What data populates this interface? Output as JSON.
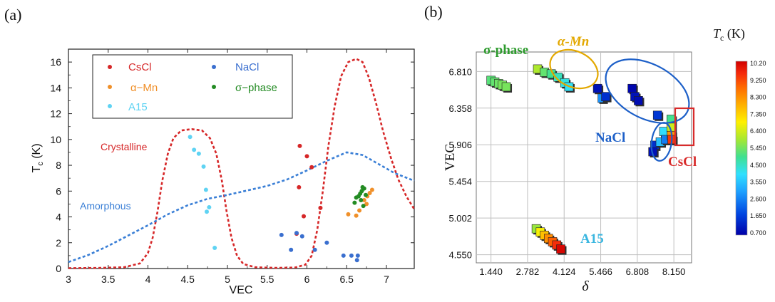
{
  "chart_data": [
    {
      "panel_label": "(a)",
      "type": "scatter",
      "xlabel": "VEC",
      "ylabel": "T",
      "ylabel_sub": "c",
      "ylabel_unit": " (K)",
      "xlim": [
        3,
        7.35
      ],
      "ylim": [
        0,
        17
      ],
      "xticks": [
        "3",
        "3.5",
        "4",
        "4.5",
        "5",
        "5.5",
        "6",
        "6.5",
        "7"
      ],
      "yticks": [
        "0",
        "2",
        "4",
        "6",
        "8",
        "10",
        "12",
        "14",
        "16"
      ],
      "grid": false,
      "legend_position": "top-center",
      "legend": [
        {
          "name": "CsCl",
          "color": "#d62728"
        },
        {
          "name": "NaCl",
          "color": "#3a6fcf"
        },
        {
          "name": "α−Mn",
          "color": "#f0902a"
        },
        {
          "name": "σ−phase",
          "color": "#238b23"
        },
        {
          "name": "A15",
          "color": "#5fd3f3"
        }
      ],
      "series": [
        {
          "name": "CsCl",
          "color": "#d62728",
          "points": [
            [
              5.91,
              9.5
            ],
            [
              6.0,
              8.7
            ],
            [
              6.06,
              7.85
            ],
            [
              5.9,
              6.3
            ],
            [
              5.96,
              4.05
            ],
            [
              6.17,
              4.7
            ],
            [
              5.87,
              2.7
            ]
          ]
        },
        {
          "name": "NaCl",
          "color": "#3a6fcf",
          "points": [
            [
              5.68,
              2.6
            ],
            [
              5.8,
              1.45
            ],
            [
              5.87,
              2.75
            ],
            [
              5.94,
              2.5
            ],
            [
              6.1,
              1.45
            ],
            [
              6.25,
              2.0
            ],
            [
              6.46,
              1.0
            ],
            [
              6.56,
              1.0
            ],
            [
              6.64,
              1.0
            ],
            [
              6.63,
              0.65
            ]
          ]
        },
        {
          "name": "α−Mn",
          "color": "#f0902a",
          "points": [
            [
              6.52,
              4.2
            ],
            [
              6.62,
              4.1
            ],
            [
              6.66,
              4.5
            ],
            [
              6.72,
              5.3
            ],
            [
              6.76,
              5.6
            ],
            [
              6.79,
              5.85
            ],
            [
              6.82,
              6.1
            ],
            [
              6.75,
              5.0
            ]
          ]
        },
        {
          "name": "σ−phase",
          "color": "#238b23",
          "points": [
            [
              6.6,
              5.1
            ],
            [
              6.62,
              5.5
            ],
            [
              6.65,
              5.6
            ],
            [
              6.67,
              5.8
            ],
            [
              6.69,
              6.0
            ],
            [
              6.7,
              6.3
            ],
            [
              6.72,
              6.2
            ],
            [
              6.68,
              5.3
            ],
            [
              6.71,
              4.85
            ],
            [
              6.74,
              5.7
            ]
          ]
        },
        {
          "name": "A15",
          "color": "#5fd3f3",
          "points": [
            [
              4.53,
              10.2
            ],
            [
              4.58,
              9.2
            ],
            [
              4.64,
              8.9
            ],
            [
              4.7,
              7.9
            ],
            [
              4.73,
              6.1
            ],
            [
              4.77,
              4.75
            ],
            [
              4.74,
              4.4
            ],
            [
              4.84,
              1.6
            ]
          ]
        }
      ],
      "curves": [
        {
          "label": "Crystalline",
          "color": "#d62728",
          "style": "dashed",
          "points": [
            [
              3.0,
              0.03
            ],
            [
              3.4,
              0.05
            ],
            [
              3.7,
              0.1
            ],
            [
              3.9,
              0.4
            ],
            [
              4.0,
              1.2
            ],
            [
              4.06,
              2.4
            ],
            [
              4.12,
              4.4
            ],
            [
              4.18,
              6.8
            ],
            [
              4.25,
              8.9
            ],
            [
              4.32,
              10.1
            ],
            [
              4.42,
              10.7
            ],
            [
              4.55,
              10.8
            ],
            [
              4.68,
              10.7
            ],
            [
              4.78,
              10.1
            ],
            [
              4.86,
              8.9
            ],
            [
              4.93,
              6.8
            ],
            [
              4.99,
              4.4
            ],
            [
              5.05,
              2.4
            ],
            [
              5.12,
              1.0
            ],
            [
              5.2,
              0.35
            ],
            [
              5.35,
              0.1
            ],
            [
              5.6,
              0.05
            ],
            [
              5.85,
              0.08
            ],
            [
              5.98,
              0.3
            ],
            [
              6.06,
              1.0
            ],
            [
              6.13,
              3.0
            ],
            [
              6.2,
              6.0
            ],
            [
              6.27,
              9.5
            ],
            [
              6.35,
              12.6
            ],
            [
              6.43,
              14.9
            ],
            [
              6.52,
              16.0
            ],
            [
              6.62,
              16.25
            ],
            [
              6.7,
              16.0
            ],
            [
              6.78,
              14.8
            ],
            [
              6.87,
              12.8
            ],
            [
              6.96,
              10.6
            ],
            [
              7.06,
              8.5
            ],
            [
              7.15,
              6.9
            ],
            [
              7.25,
              5.6
            ],
            [
              7.35,
              4.6
            ]
          ]
        },
        {
          "label": "Amorphous",
          "color": "#3a7fd6",
          "style": "dashed",
          "points": [
            [
              3.0,
              0.5
            ],
            [
              3.25,
              1.05
            ],
            [
              3.5,
              1.75
            ],
            [
              3.75,
              2.55
            ],
            [
              4.0,
              3.35
            ],
            [
              4.25,
              4.2
            ],
            [
              4.5,
              4.9
            ],
            [
              4.75,
              5.4
            ],
            [
              5.0,
              5.7
            ],
            [
              5.25,
              6.05
            ],
            [
              5.5,
              6.4
            ],
            [
              5.75,
              6.9
            ],
            [
              6.0,
              7.6
            ],
            [
              6.25,
              8.35
            ],
            [
              6.5,
              9.0
            ],
            [
              6.7,
              8.8
            ],
            [
              6.9,
              8.1
            ],
            [
              7.1,
              7.4
            ],
            [
              7.35,
              6.8
            ]
          ]
        }
      ]
    },
    {
      "panel_label": "(b)",
      "type": "scatter",
      "xlabel": "δ",
      "ylabel": "VEC",
      "xticks": [
        "1.440",
        "2.782",
        "4.124",
        "5.466",
        "6.808",
        "8.150"
      ],
      "yticks": [
        "4.550",
        "5.002",
        "5.454",
        "5.906",
        "6.358",
        "6.810"
      ],
      "xlim": [
        0.9,
        8.8
      ],
      "ylim": [
        4.45,
        7.05
      ],
      "grid": true,
      "colorbar": {
        "title": "T",
        "title_sub": "c",
        "title_unit": " (K)",
        "ticks": [
          "10.20",
          "9.250",
          "8.300",
          "7.350",
          "6.400",
          "5.450",
          "4.500",
          "3.550",
          "2.600",
          "1.650",
          "0.700"
        ],
        "min": 0.7,
        "max": 10.2
      },
      "groups": [
        {
          "label": "σ-phase",
          "color": "#2e9b2e",
          "enclosure": "none",
          "points": [
            [
              1.44,
              6.7,
              5.2
            ],
            [
              1.58,
              6.68,
              5.3
            ],
            [
              1.72,
              6.66,
              5.4
            ],
            [
              1.86,
              6.64,
              5.5
            ],
            [
              2.0,
              6.62,
              5.5
            ]
          ]
        },
        {
          "label": "α-Mn",
          "color": "#e3a800",
          "enclosure": "ellipse",
          "points": [
            [
              3.15,
              6.84,
              6.0
            ],
            [
              3.4,
              6.8,
              5.3
            ],
            [
              3.65,
              6.78,
              5.0
            ],
            [
              3.9,
              6.74,
              4.6
            ],
            [
              4.15,
              6.67,
              4.3
            ],
            [
              4.3,
              6.62,
              4.1
            ]
          ]
        },
        {
          "label": "NaCl",
          "color": "#1c5fc8",
          "enclosure": "ellipse",
          "points": [
            [
              5.35,
              6.6,
              1.0
            ],
            [
              5.52,
              6.48,
              2.9
            ],
            [
              5.65,
              6.5,
              1.5
            ],
            [
              6.62,
              6.6,
              0.8
            ],
            [
              6.72,
              6.5,
              1.0
            ],
            [
              6.85,
              6.45,
              0.9
            ],
            [
              7.55,
              6.27,
              1.6
            ],
            [
              7.45,
              5.9,
              1.5
            ],
            [
              7.38,
              5.82,
              1.0
            ]
          ]
        },
        {
          "label": "CsCl",
          "color": "#d82b2b",
          "enclosure": "rectangle",
          "points": [
            [
              7.65,
              5.94,
              3.5
            ],
            [
              7.78,
              6.07,
              4.0
            ],
            [
              7.85,
              5.97,
              2.6
            ],
            [
              8.05,
              6.22,
              5.0
            ],
            [
              8.05,
              6.12,
              6.3
            ],
            [
              8.06,
              6.02,
              8.2
            ],
            [
              8.08,
              5.97,
              9.4
            ]
          ]
        },
        {
          "label": "A15",
          "color": "#39b6e0",
          "enclosure": "none",
          "points": [
            [
              3.1,
              4.87,
              5.8
            ],
            [
              3.25,
              4.83,
              6.8
            ],
            [
              3.4,
              4.79,
              7.6
            ],
            [
              3.55,
              4.75,
              8.3
            ],
            [
              3.7,
              4.71,
              8.9
            ],
            [
              3.85,
              4.67,
              9.5
            ],
            [
              4.0,
              4.62,
              10.1
            ]
          ]
        }
      ]
    }
  ]
}
